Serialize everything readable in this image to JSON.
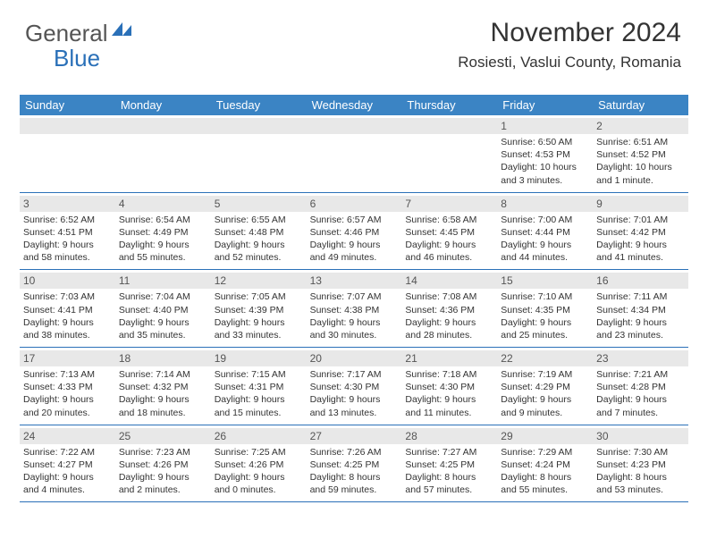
{
  "logo": {
    "part1": "General",
    "part2": "Blue"
  },
  "header": {
    "month_title": "November 2024",
    "location": "Rosiesti, Vaslui County, Romania"
  },
  "colors": {
    "header_bg": "#3b84c4",
    "rule": "#2a70b8",
    "daynum_bg": "#e8e8e8",
    "logo_gray": "#555555",
    "logo_blue": "#2a70b8"
  },
  "day_names": [
    "Sunday",
    "Monday",
    "Tuesday",
    "Wednesday",
    "Thursday",
    "Friday",
    "Saturday"
  ],
  "weeks": [
    [
      {
        "day": null
      },
      {
        "day": null
      },
      {
        "day": null
      },
      {
        "day": null
      },
      {
        "day": null
      },
      {
        "day": "1",
        "sunrise": "Sunrise: 6:50 AM",
        "sunset": "Sunset: 4:53 PM",
        "daylight1": "Daylight: 10 hours",
        "daylight2": "and 3 minutes."
      },
      {
        "day": "2",
        "sunrise": "Sunrise: 6:51 AM",
        "sunset": "Sunset: 4:52 PM",
        "daylight1": "Daylight: 10 hours",
        "daylight2": "and 1 minute."
      }
    ],
    [
      {
        "day": "3",
        "sunrise": "Sunrise: 6:52 AM",
        "sunset": "Sunset: 4:51 PM",
        "daylight1": "Daylight: 9 hours",
        "daylight2": "and 58 minutes."
      },
      {
        "day": "4",
        "sunrise": "Sunrise: 6:54 AM",
        "sunset": "Sunset: 4:49 PM",
        "daylight1": "Daylight: 9 hours",
        "daylight2": "and 55 minutes."
      },
      {
        "day": "5",
        "sunrise": "Sunrise: 6:55 AM",
        "sunset": "Sunset: 4:48 PM",
        "daylight1": "Daylight: 9 hours",
        "daylight2": "and 52 minutes."
      },
      {
        "day": "6",
        "sunrise": "Sunrise: 6:57 AM",
        "sunset": "Sunset: 4:46 PM",
        "daylight1": "Daylight: 9 hours",
        "daylight2": "and 49 minutes."
      },
      {
        "day": "7",
        "sunrise": "Sunrise: 6:58 AM",
        "sunset": "Sunset: 4:45 PM",
        "daylight1": "Daylight: 9 hours",
        "daylight2": "and 46 minutes."
      },
      {
        "day": "8",
        "sunrise": "Sunrise: 7:00 AM",
        "sunset": "Sunset: 4:44 PM",
        "daylight1": "Daylight: 9 hours",
        "daylight2": "and 44 minutes."
      },
      {
        "day": "9",
        "sunrise": "Sunrise: 7:01 AM",
        "sunset": "Sunset: 4:42 PM",
        "daylight1": "Daylight: 9 hours",
        "daylight2": "and 41 minutes."
      }
    ],
    [
      {
        "day": "10",
        "sunrise": "Sunrise: 7:03 AM",
        "sunset": "Sunset: 4:41 PM",
        "daylight1": "Daylight: 9 hours",
        "daylight2": "and 38 minutes."
      },
      {
        "day": "11",
        "sunrise": "Sunrise: 7:04 AM",
        "sunset": "Sunset: 4:40 PM",
        "daylight1": "Daylight: 9 hours",
        "daylight2": "and 35 minutes."
      },
      {
        "day": "12",
        "sunrise": "Sunrise: 7:05 AM",
        "sunset": "Sunset: 4:39 PM",
        "daylight1": "Daylight: 9 hours",
        "daylight2": "and 33 minutes."
      },
      {
        "day": "13",
        "sunrise": "Sunrise: 7:07 AM",
        "sunset": "Sunset: 4:38 PM",
        "daylight1": "Daylight: 9 hours",
        "daylight2": "and 30 minutes."
      },
      {
        "day": "14",
        "sunrise": "Sunrise: 7:08 AM",
        "sunset": "Sunset: 4:36 PM",
        "daylight1": "Daylight: 9 hours",
        "daylight2": "and 28 minutes."
      },
      {
        "day": "15",
        "sunrise": "Sunrise: 7:10 AM",
        "sunset": "Sunset: 4:35 PM",
        "daylight1": "Daylight: 9 hours",
        "daylight2": "and 25 minutes."
      },
      {
        "day": "16",
        "sunrise": "Sunrise: 7:11 AM",
        "sunset": "Sunset: 4:34 PM",
        "daylight1": "Daylight: 9 hours",
        "daylight2": "and 23 minutes."
      }
    ],
    [
      {
        "day": "17",
        "sunrise": "Sunrise: 7:13 AM",
        "sunset": "Sunset: 4:33 PM",
        "daylight1": "Daylight: 9 hours",
        "daylight2": "and 20 minutes."
      },
      {
        "day": "18",
        "sunrise": "Sunrise: 7:14 AM",
        "sunset": "Sunset: 4:32 PM",
        "daylight1": "Daylight: 9 hours",
        "daylight2": "and 18 minutes."
      },
      {
        "day": "19",
        "sunrise": "Sunrise: 7:15 AM",
        "sunset": "Sunset: 4:31 PM",
        "daylight1": "Daylight: 9 hours",
        "daylight2": "and 15 minutes."
      },
      {
        "day": "20",
        "sunrise": "Sunrise: 7:17 AM",
        "sunset": "Sunset: 4:30 PM",
        "daylight1": "Daylight: 9 hours",
        "daylight2": "and 13 minutes."
      },
      {
        "day": "21",
        "sunrise": "Sunrise: 7:18 AM",
        "sunset": "Sunset: 4:30 PM",
        "daylight1": "Daylight: 9 hours",
        "daylight2": "and 11 minutes."
      },
      {
        "day": "22",
        "sunrise": "Sunrise: 7:19 AM",
        "sunset": "Sunset: 4:29 PM",
        "daylight1": "Daylight: 9 hours",
        "daylight2": "and 9 minutes."
      },
      {
        "day": "23",
        "sunrise": "Sunrise: 7:21 AM",
        "sunset": "Sunset: 4:28 PM",
        "daylight1": "Daylight: 9 hours",
        "daylight2": "and 7 minutes."
      }
    ],
    [
      {
        "day": "24",
        "sunrise": "Sunrise: 7:22 AM",
        "sunset": "Sunset: 4:27 PM",
        "daylight1": "Daylight: 9 hours",
        "daylight2": "and 4 minutes."
      },
      {
        "day": "25",
        "sunrise": "Sunrise: 7:23 AM",
        "sunset": "Sunset: 4:26 PM",
        "daylight1": "Daylight: 9 hours",
        "daylight2": "and 2 minutes."
      },
      {
        "day": "26",
        "sunrise": "Sunrise: 7:25 AM",
        "sunset": "Sunset: 4:26 PM",
        "daylight1": "Daylight: 9 hours",
        "daylight2": "and 0 minutes."
      },
      {
        "day": "27",
        "sunrise": "Sunrise: 7:26 AM",
        "sunset": "Sunset: 4:25 PM",
        "daylight1": "Daylight: 8 hours",
        "daylight2": "and 59 minutes."
      },
      {
        "day": "28",
        "sunrise": "Sunrise: 7:27 AM",
        "sunset": "Sunset: 4:25 PM",
        "daylight1": "Daylight: 8 hours",
        "daylight2": "and 57 minutes."
      },
      {
        "day": "29",
        "sunrise": "Sunrise: 7:29 AM",
        "sunset": "Sunset: 4:24 PM",
        "daylight1": "Daylight: 8 hours",
        "daylight2": "and 55 minutes."
      },
      {
        "day": "30",
        "sunrise": "Sunrise: 7:30 AM",
        "sunset": "Sunset: 4:23 PM",
        "daylight1": "Daylight: 8 hours",
        "daylight2": "and 53 minutes."
      }
    ]
  ]
}
